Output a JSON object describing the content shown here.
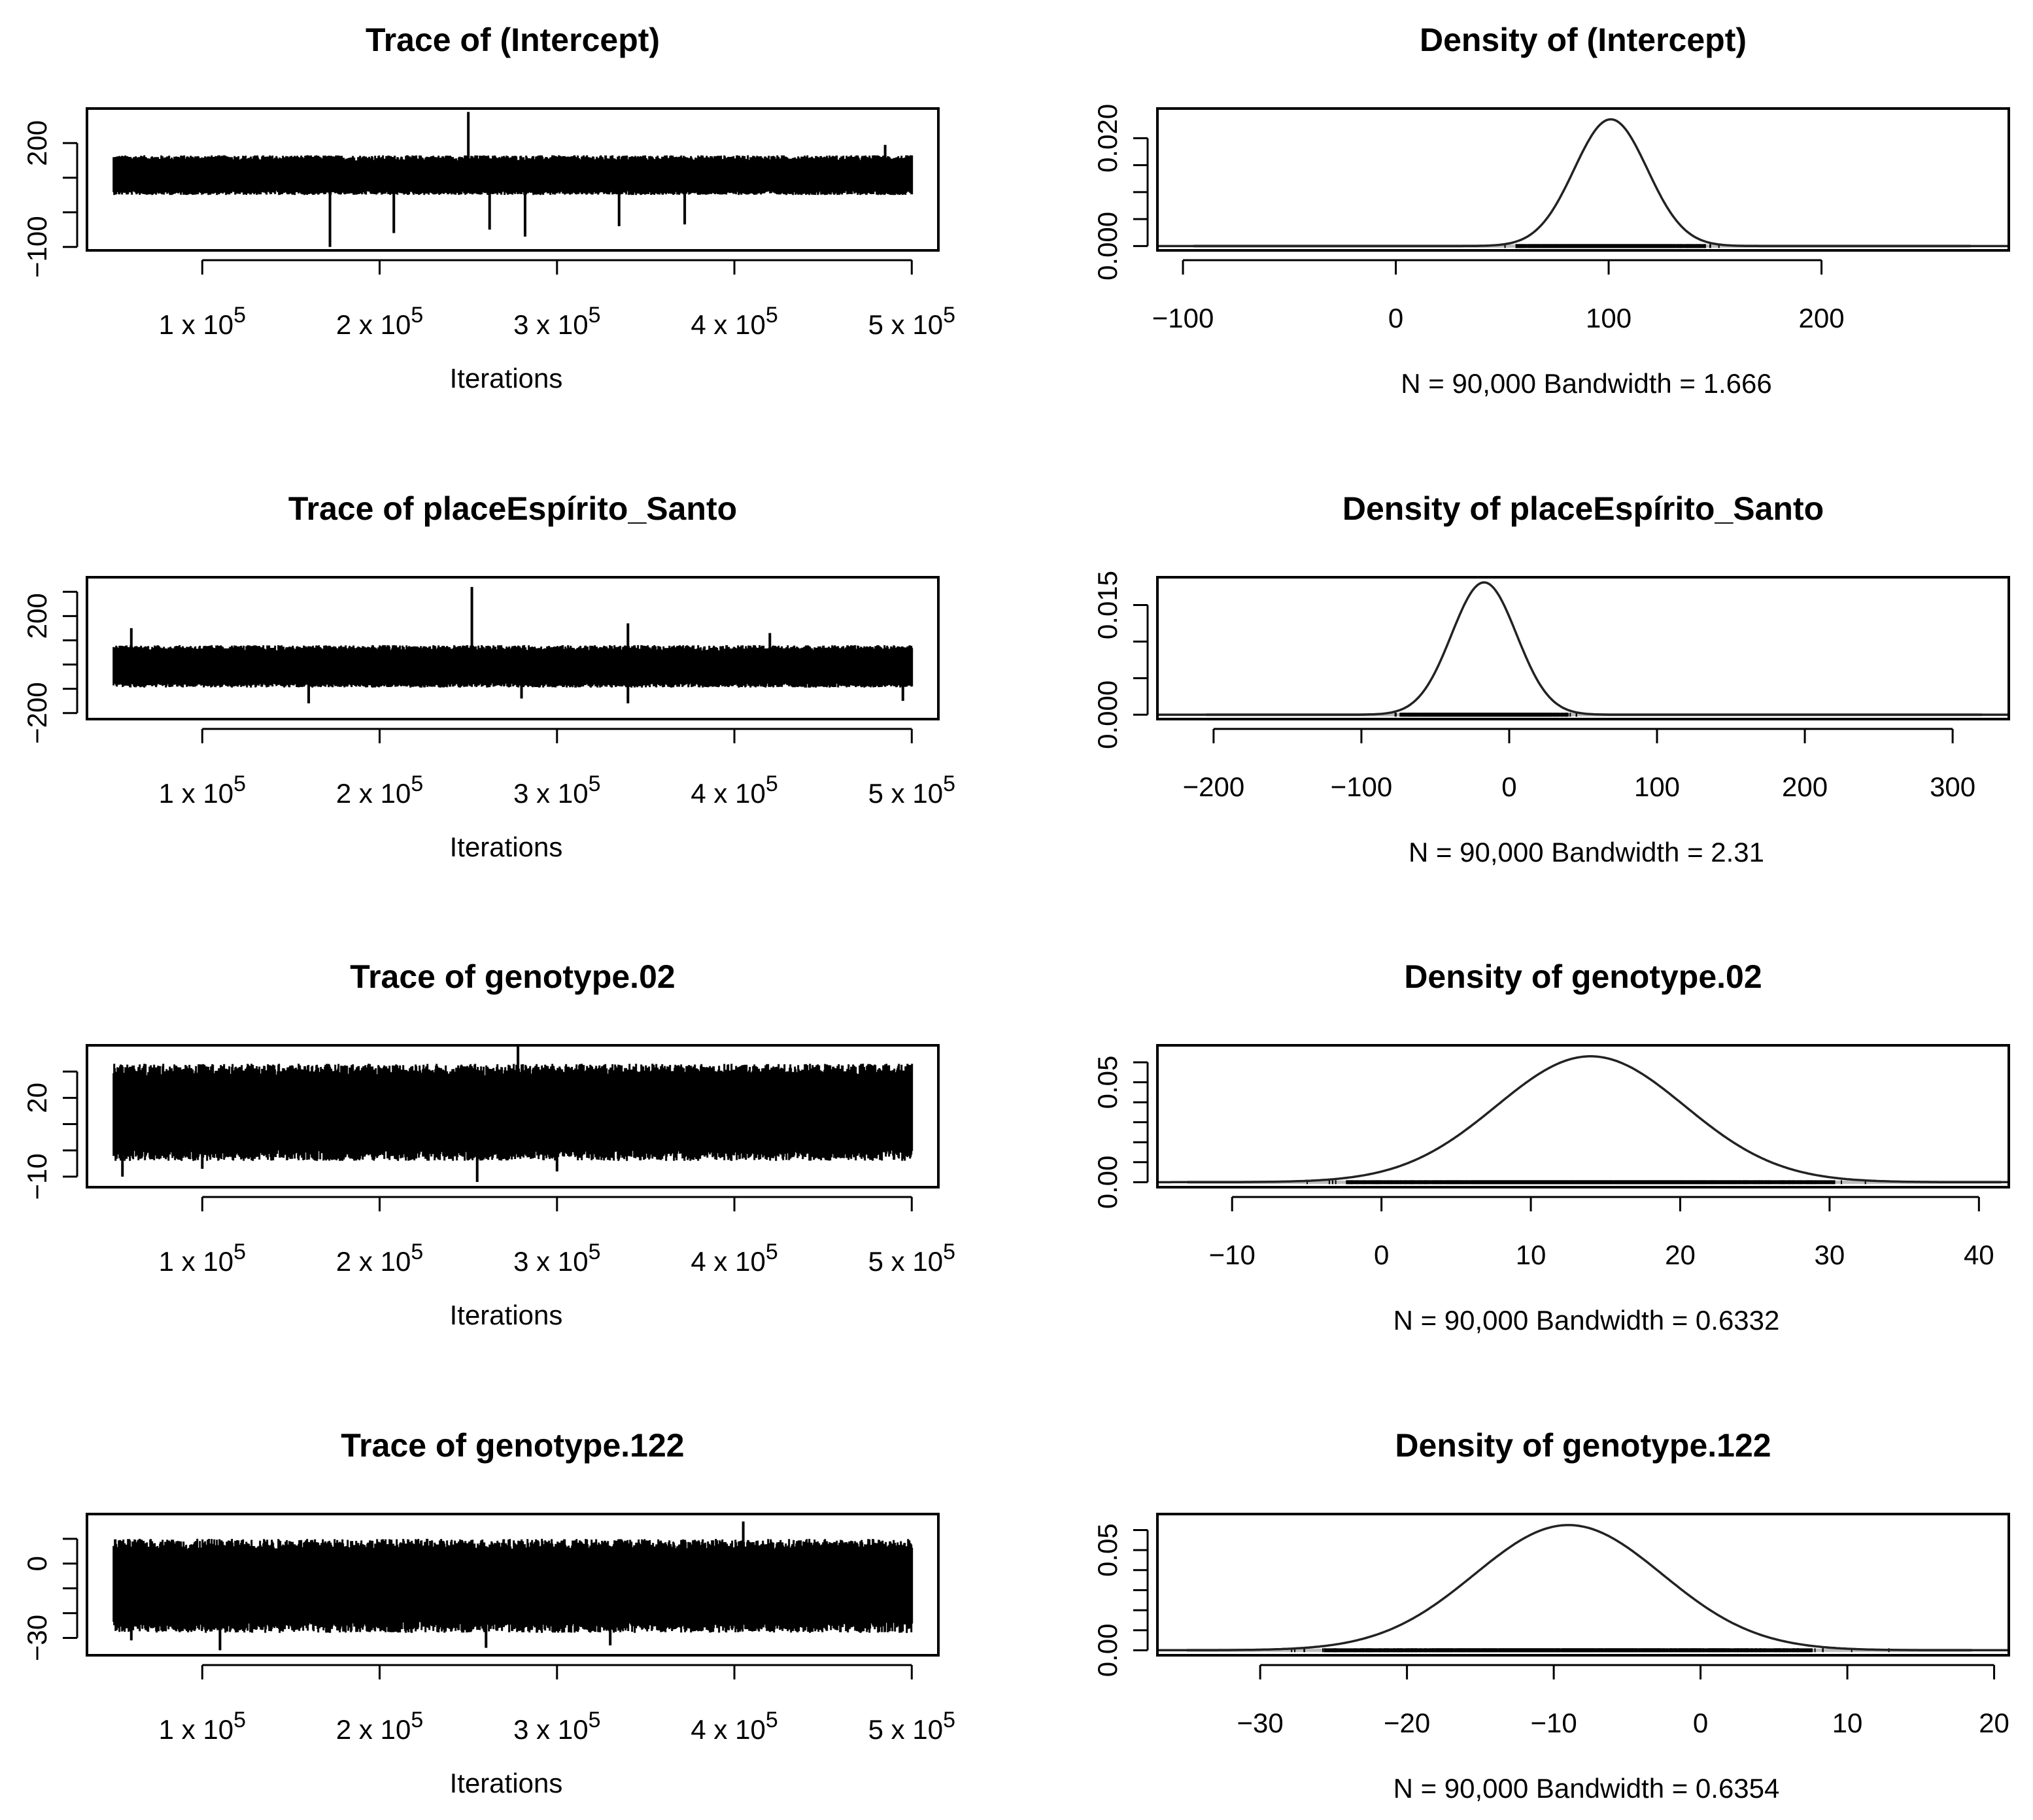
{
  "figure": {
    "background": "#ffffff",
    "line_color": "#000000",
    "rug_color": "#bdbdbd"
  },
  "chart_data": [
    {
      "type": "line",
      "kind": "trace",
      "title": "Trace of (Intercept)",
      "xlabel": "Iterations",
      "ylabel": "",
      "xlim": [
        35000,
        515000
      ],
      "ylim": [
        -110,
        300
      ],
      "x_range": [
        50000,
        500000
      ],
      "xticks": [
        100000,
        200000,
        300000,
        400000,
        500000
      ],
      "xtick_labels": [
        [
          "1 x 10",
          "5"
        ],
        [
          "2 x 10",
          "5"
        ],
        [
          "3 x 10",
          "5"
        ],
        [
          "4 x 10",
          "5"
        ],
        [
          "5 x 10",
          "5"
        ]
      ],
      "yticks": [
        -100,
        0,
        100,
        200
      ],
      "ytick_labels": [
        "−100",
        "",
        "",
        "200"
      ],
      "series": [
        {
          "name": "(Intercept)",
          "center": 100,
          "band_low": 50,
          "band_high": 165,
          "spikes": [
            [
              250000,
              290
            ],
            [
              172000,
              -100
            ],
            [
              208000,
              -60
            ],
            [
              262000,
              -50
            ],
            [
              282000,
              -70
            ],
            [
              335000,
              -40
            ],
            [
              372000,
              -35
            ],
            [
              485000,
              195
            ]
          ]
        }
      ]
    },
    {
      "type": "line",
      "kind": "density",
      "title": "Density of (Intercept)",
      "xlabel": "N = 90,000 Bandwidth = 1.666",
      "ylabel": "",
      "xlim": [
        -112,
        288
      ],
      "ylim": [
        -0.0008,
        0.0255
      ],
      "xticks": [
        -100,
        0,
        100,
        200
      ],
      "xtick_labels": [
        "−100",
        "0",
        "100",
        "200"
      ],
      "yticks": [
        0,
        0.005,
        0.01,
        0.015,
        0.02
      ],
      "ytick_labels": [
        "0.000",
        "",
        "",
        "",
        "0.020"
      ],
      "series": [
        {
          "name": "(Intercept)",
          "mean": 101,
          "sd": 17.2,
          "peak": 0.0235
        }
      ],
      "rug_range": [
        -95,
        270
      ]
    },
    {
      "type": "line",
      "kind": "trace",
      "title": "Trace of placeEspírito_Santo",
      "xlabel": "Iterations",
      "ylabel": "",
      "xlim": [
        35000,
        515000
      ],
      "ylim": [
        -225,
        360
      ],
      "x_range": [
        50000,
        500000
      ],
      "xticks": [
        100000,
        200000,
        300000,
        400000,
        500000
      ],
      "xtick_labels": [
        [
          "1 x 10",
          "5"
        ],
        [
          "2 x 10",
          "5"
        ],
        [
          "3 x 10",
          "5"
        ],
        [
          "4 x 10",
          "5"
        ],
        [
          "5 x 10",
          "5"
        ]
      ],
      "yticks": [
        -200,
        -100,
        0,
        100,
        200,
        300
      ],
      "ytick_labels": [
        "−200",
        "",
        "",
        "",
        "200",
        ""
      ],
      "series": [
        {
          "name": "placeEspírito_Santo",
          "center": -15,
          "band_low": -95,
          "band_high": 80,
          "spikes": [
            [
              252000,
              320
            ],
            [
              60000,
              150
            ],
            [
              340000,
              170
            ],
            [
              420000,
              130
            ],
            [
              160000,
              -160
            ],
            [
              280000,
              -140
            ],
            [
              340000,
              -160
            ],
            [
              495000,
              -150
            ]
          ]
        }
      ]
    },
    {
      "type": "line",
      "kind": "density",
      "title": "Density of placeEspírito_Santo",
      "xlabel": "N = 90,000 Bandwidth = 2.31",
      "ylabel": "",
      "xlim": [
        -238,
        338
      ],
      "ylim": [
        -0.0006,
        0.0188
      ],
      "xticks": [
        -200,
        -100,
        0,
        100,
        200,
        300
      ],
      "xtick_labels": [
        "−200",
        "−100",
        "0",
        "100",
        "200",
        "300"
      ],
      "yticks": [
        0,
        0.005,
        0.01,
        0.015
      ],
      "ytick_labels": [
        "0.000",
        "",
        "",
        "0.015"
      ],
      "series": [
        {
          "name": "placeEspírito_Santo",
          "mean": -17,
          "sd": 22,
          "peak": 0.0181
        }
      ],
      "rug_range": [
        -205,
        320
      ]
    },
    {
      "type": "line",
      "kind": "trace",
      "title": "Trace of genotype.02",
      "xlabel": "Iterations",
      "ylabel": "",
      "xlim": [
        35000,
        515000
      ],
      "ylim": [
        -14,
        40
      ],
      "x_range": [
        50000,
        500000
      ],
      "xticks": [
        100000,
        200000,
        300000,
        400000,
        500000
      ],
      "xtick_labels": [
        [
          "1 x 10",
          "5"
        ],
        [
          "2 x 10",
          "5"
        ],
        [
          "3 x 10",
          "5"
        ],
        [
          "4 x 10",
          "5"
        ],
        [
          "5 x 10",
          "5"
        ]
      ],
      "yticks": [
        -10,
        0,
        10,
        20,
        30
      ],
      "ytick_labels": [
        "−10",
        "",
        "",
        "20",
        ""
      ],
      "series": [
        {
          "name": "genotype.02",
          "center": 14,
          "band_low": -4,
          "band_high": 33,
          "spikes": [
            [
              278000,
              40
            ],
            [
              255000,
              -12
            ],
            [
              55000,
              -10
            ],
            [
              100000,
              -7
            ],
            [
              300000,
              -8
            ]
          ]
        }
      ]
    },
    {
      "type": "line",
      "kind": "density",
      "title": "Density of genotype.02",
      "xlabel": "N = 90,000 Bandwidth = 0.6332",
      "ylabel": "",
      "xlim": [
        -15,
        42
      ],
      "ylim": [
        -0.0025,
        0.0685
      ],
      "xticks": [
        -10,
        0,
        10,
        20,
        30,
        40
      ],
      "xtick_labels": [
        "−10",
        "0",
        "10",
        "20",
        "30",
        "40"
      ],
      "yticks": [
        0,
        0.01,
        0.02,
        0.03,
        0.04,
        0.05,
        0.06
      ],
      "ytick_labels": [
        "0.00",
        "",
        "",
        "",
        "",
        "0.05",
        ""
      ],
      "series": [
        {
          "name": "genotype.02",
          "mean": 14,
          "sd": 6.3,
          "peak": 0.063
        }
      ],
      "rug_range": [
        -13,
        41.5
      ]
    },
    {
      "type": "line",
      "kind": "trace",
      "title": "Trace of genotype.122",
      "xlabel": "Iterations",
      "ylabel": "",
      "xlim": [
        35000,
        515000
      ],
      "ylim": [
        -37,
        20
      ],
      "x_range": [
        50000,
        500000
      ],
      "xticks": [
        100000,
        200000,
        300000,
        400000,
        500000
      ],
      "xtick_labels": [
        [
          "1 x 10",
          "5"
        ],
        [
          "2 x 10",
          "5"
        ],
        [
          "3 x 10",
          "5"
        ],
        [
          "4 x 10",
          "5"
        ],
        [
          "5 x 10",
          "5"
        ]
      ],
      "yticks": [
        -30,
        -20,
        -10,
        0,
        10
      ],
      "ytick_labels": [
        "−30",
        "",
        "",
        "0",
        ""
      ],
      "series": [
        {
          "name": "genotype.122",
          "center": -9,
          "band_low": -28,
          "band_high": 10,
          "spikes": [
            [
              405000,
              17
            ],
            [
              110000,
              -35
            ],
            [
              260000,
              -34
            ],
            [
              330000,
              -33
            ],
            [
              60000,
              -31
            ]
          ]
        }
      ]
    },
    {
      "type": "line",
      "kind": "density",
      "title": "Density of genotype.122",
      "xlabel": "N = 90,000 Bandwidth = 0.6354",
      "ylabel": "",
      "xlim": [
        -37,
        21
      ],
      "ylim": [
        -0.0025,
        0.068
      ],
      "xticks": [
        -30,
        -20,
        -10,
        0,
        10,
        20
      ],
      "xtick_labels": [
        "−30",
        "−20",
        "−10",
        "0",
        "10",
        "20"
      ],
      "yticks": [
        0,
        0.01,
        0.02,
        0.03,
        0.04,
        0.05,
        0.06
      ],
      "ytick_labels": [
        "0.00",
        "",
        "",
        "",
        "",
        "0.05",
        ""
      ],
      "series": [
        {
          "name": "genotype.122",
          "mean": -9,
          "sd": 6.4,
          "peak": 0.0625
        }
      ],
      "rug_range": [
        -35,
        18.5
      ]
    }
  ]
}
